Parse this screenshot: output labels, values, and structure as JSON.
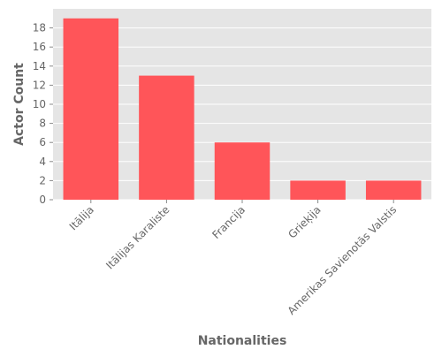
{
  "chart_data": {
    "type": "bar",
    "title": "",
    "xlabel": "Nationalities",
    "ylabel": "Actor Count",
    "categories": [
      "Itālija",
      "Itālijas Karaliste",
      "Francija",
      "Grieķija",
      "Amerikas Savienotās Valstis"
    ],
    "values": [
      19,
      13,
      6,
      2,
      2
    ],
    "ylim": [
      0,
      20
    ],
    "yticks": [
      0,
      2,
      4,
      6,
      8,
      10,
      12,
      14,
      16,
      18
    ],
    "grid": true,
    "legend": "none",
    "colors": {
      "bar": "#ff5559",
      "plot_background": "#e5e5e5",
      "grid": "#ffffff",
      "text": "#666666"
    }
  }
}
